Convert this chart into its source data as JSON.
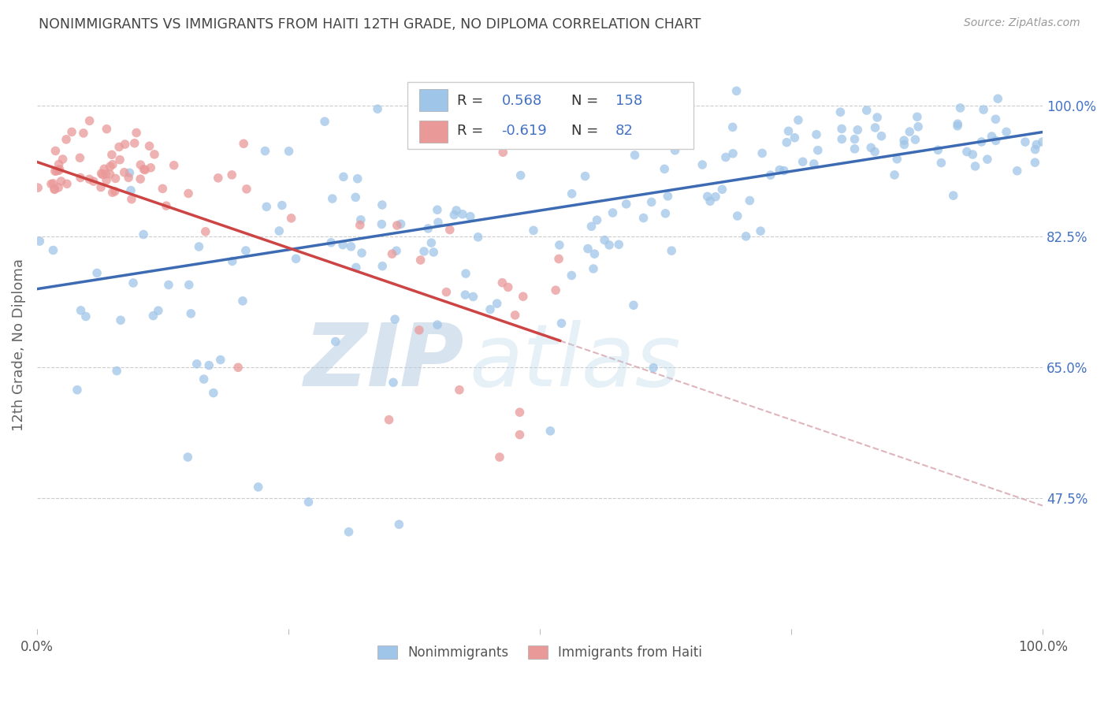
{
  "title": "NONIMMIGRANTS VS IMMIGRANTS FROM HAITI 12TH GRADE, NO DIPLOMA CORRELATION CHART",
  "source": "Source: ZipAtlas.com",
  "ylabel": "12th Grade, No Diploma",
  "y_ticks": [
    "100.0%",
    "82.5%",
    "65.0%",
    "47.5%"
  ],
  "y_tick_vals": [
    1.0,
    0.825,
    0.65,
    0.475
  ],
  "r_nonimm": 0.568,
  "n_nonimm": 158,
  "r_haiti": -0.619,
  "n_haiti": 82,
  "blue_color": "#9fc5e8",
  "pink_color": "#ea9999",
  "trend_blue": "#3d6bb3",
  "trend_pink": "#cc4444",
  "trend_dashed_color": "#d8a8b0",
  "watermark_zip": "ZIP",
  "watermark_atlas": "atlas",
  "bg_color": "#ffffff",
  "grid_color": "#cccccc",
  "title_color": "#444444",
  "axis_label_color": "#4472c4",
  "ylim_min": 0.3,
  "ylim_max": 1.06
}
